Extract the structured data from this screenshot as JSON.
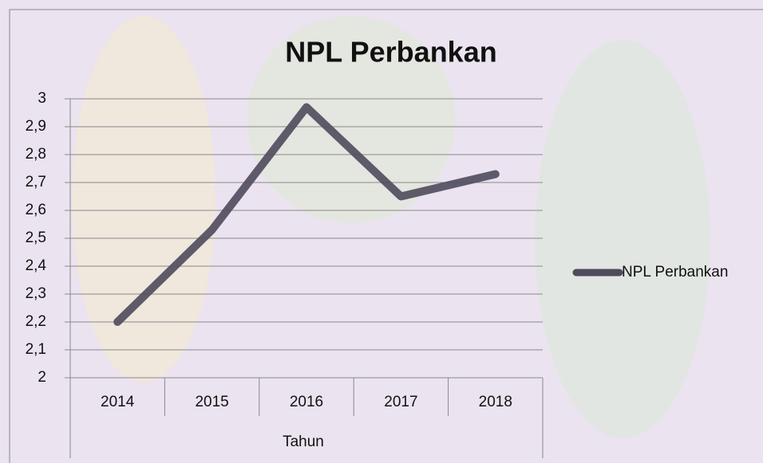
{
  "chart_data": {
    "type": "line",
    "title": "NPL Perbankan",
    "x_label": "Tahun",
    "categories": [
      "2014",
      "2015",
      "2016",
      "2017",
      "2018"
    ],
    "series": [
      {
        "name": "NPL Perbankan",
        "color": "#4f4a5c",
        "values": [
          2.2,
          2.53,
          2.97,
          2.65,
          2.73
        ]
      }
    ],
    "ylim": [
      2,
      3
    ],
    "yticks": [
      2,
      {
        "value": 2.1,
        "label": "2,1"
      },
      {
        "value": 2.2,
        "label": "2,2"
      },
      {
        "value": 2.3,
        "label": "2,3"
      },
      {
        "value": 2.4,
        "label": "2,4"
      },
      {
        "value": 2.5,
        "label": "2,5"
      },
      {
        "value": 2.6,
        "label": "2,6"
      },
      {
        "value": 2.7,
        "label": "2,7"
      },
      {
        "value": 2.8,
        "label": "2,8"
      },
      {
        "value": 2.9,
        "label": "2,9"
      },
      3
    ],
    "grid": true,
    "legend": "right"
  }
}
